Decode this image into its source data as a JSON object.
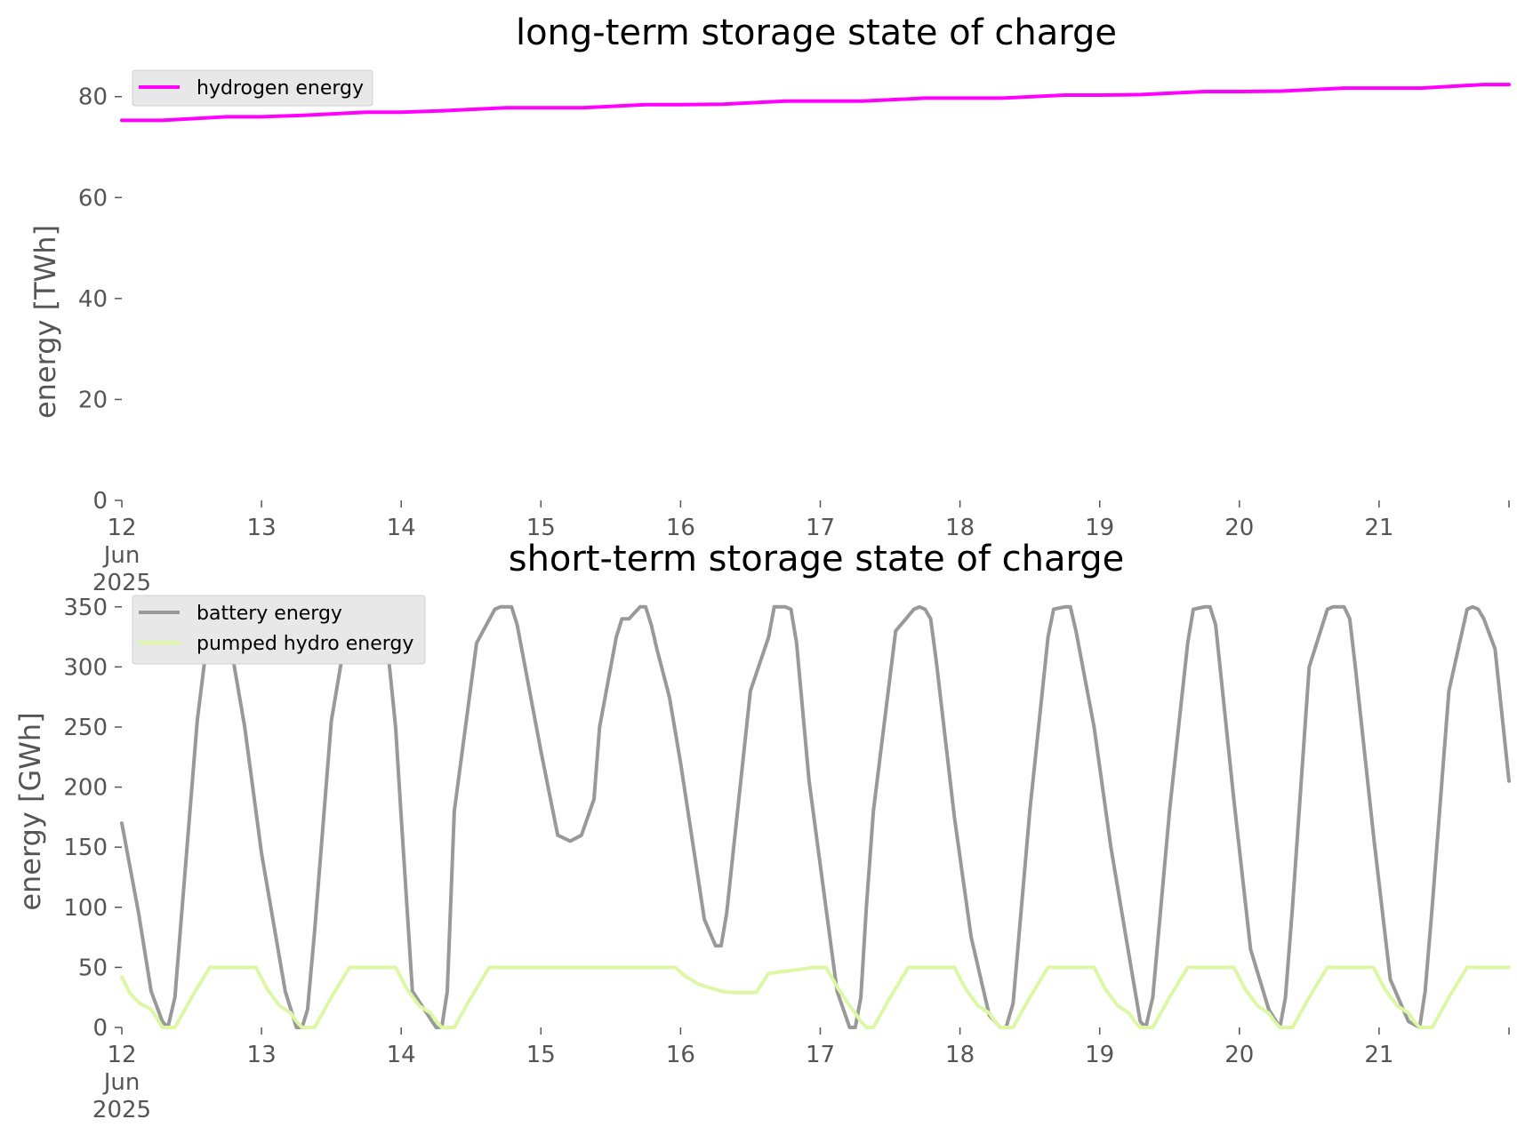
{
  "chart_data": [
    {
      "type": "line",
      "title": "long-term storage state of charge",
      "xlabel": "",
      "ylabel": "energy [TWh]",
      "ylim": [
        0,
        84
      ],
      "yticks": [
        0,
        20,
        40,
        60,
        80
      ],
      "xlim": [
        0,
        9.93
      ],
      "xtick_values": [
        0,
        1,
        2,
        3,
        4,
        5,
        6,
        7,
        8,
        9
      ],
      "xtick_labels": [
        "12\nJun\n2025",
        "13",
        "14",
        "15",
        "16",
        "17",
        "18",
        "19",
        "20",
        "21"
      ],
      "grid": false,
      "legend": "top-left",
      "series": [
        {
          "name": "hydrogen energy",
          "color": "#ff00ff",
          "x": [
            0,
            0.29,
            0.75,
            1.0,
            1.3,
            1.75,
            2.0,
            2.3,
            2.75,
            3.0,
            3.3,
            3.75,
            4.0,
            4.3,
            4.75,
            5.0,
            5.3,
            5.75,
            6.0,
            6.3,
            6.75,
            7.0,
            7.3,
            7.75,
            8.0,
            8.3,
            8.75,
            9.0,
            9.3,
            9.75,
            9.93
          ],
          "values": [
            75.3,
            75.3,
            76.0,
            76.0,
            76.3,
            76.9,
            76.9,
            77.2,
            77.8,
            77.8,
            77.8,
            78.4,
            78.4,
            78.5,
            79.1,
            79.1,
            79.1,
            79.7,
            79.7,
            79.7,
            80.3,
            80.3,
            80.4,
            81.0,
            81.0,
            81.1,
            81.7,
            81.7,
            81.7,
            82.4,
            82.4
          ]
        }
      ]
    },
    {
      "type": "line",
      "title": "short-term storage state of charge",
      "xlabel": "",
      "ylabel": "energy [GWh]",
      "ylim": [
        0,
        355
      ],
      "yticks": [
        0,
        50,
        100,
        150,
        200,
        250,
        300,
        350
      ],
      "xlim": [
        0,
        9.93
      ],
      "xtick_values": [
        0,
        1,
        2,
        3,
        4,
        5,
        6,
        7,
        8,
        9
      ],
      "xtick_labels": [
        "12\nJun\n2025",
        "13",
        "14",
        "15",
        "16",
        "17",
        "18",
        "19",
        "20",
        "21"
      ],
      "grid": false,
      "legend": "top-left",
      "series": [
        {
          "name": "battery energy",
          "color": "#999999",
          "x": [
            0,
            0.12,
            0.21,
            0.29,
            0.33,
            0.38,
            0.54,
            0.63,
            0.67,
            0.75,
            0.88,
            1.0,
            1.17,
            1.25,
            1.29,
            1.33,
            1.38,
            1.5,
            1.63,
            1.67,
            1.75,
            1.79,
            1.83,
            1.88,
            1.96,
            2.0,
            2.08,
            2.25,
            2.29,
            2.33,
            2.38,
            2.54,
            2.67,
            2.71,
            2.79,
            2.83,
            3.0,
            3.12,
            3.21,
            3.29,
            3.38,
            3.42,
            3.54,
            3.58,
            3.63,
            3.71,
            3.75,
            3.79,
            3.83,
            3.92,
            4.0,
            4.17,
            4.25,
            4.29,
            4.33,
            4.38,
            4.5,
            4.63,
            4.67,
            4.75,
            4.79,
            4.83,
            4.92,
            5.0,
            5.12,
            5.21,
            5.25,
            5.29,
            5.33,
            5.38,
            5.54,
            5.67,
            5.71,
            5.75,
            5.79,
            5.83,
            5.96,
            6.08,
            6.21,
            6.29,
            6.33,
            6.38,
            6.5,
            6.63,
            6.67,
            6.75,
            6.79,
            6.83,
            6.96,
            7.08,
            7.21,
            7.29,
            7.33,
            7.38,
            7.5,
            7.63,
            7.67,
            7.75,
            7.79,
            7.83,
            7.96,
            8.08,
            8.21,
            8.29,
            8.33,
            8.38,
            8.5,
            8.63,
            8.67,
            8.75,
            8.79,
            8.83,
            8.96,
            9.08,
            9.21,
            9.29,
            9.33,
            9.38,
            9.5,
            9.63,
            9.67,
            9.71,
            9.75,
            9.83,
            9.93
          ],
          "values": [
            170,
            95,
            30,
            5,
            0,
            25,
            255,
            340,
            350,
            338,
            250,
            145,
            30,
            0,
            0,
            15,
            80,
            255,
            345,
            350,
            348,
            342,
            340,
            342,
            250,
            175,
            30,
            0,
            0,
            30,
            180,
            320,
            348,
            350,
            350,
            335,
            230,
            160,
            155,
            160,
            190,
            250,
            325,
            340,
            340,
            350,
            350,
            335,
            315,
            275,
            220,
            90,
            68,
            68,
            95,
            150,
            280,
            325,
            350,
            350,
            348,
            320,
            205,
            135,
            30,
            0,
            0,
            25,
            100,
            180,
            330,
            348,
            350,
            348,
            340,
            305,
            175,
            75,
            10,
            0,
            0,
            20,
            180,
            325,
            348,
            350,
            350,
            330,
            250,
            150,
            60,
            5,
            0,
            25,
            180,
            320,
            348,
            350,
            350,
            335,
            190,
            65,
            15,
            0,
            25,
            100,
            300,
            348,
            350,
            350,
            340,
            300,
            160,
            40,
            5,
            0,
            30,
            100,
            280,
            348,
            350,
            348,
            340,
            315,
            205
          ]
        },
        {
          "name": "pumped hydro energy",
          "color": "#ddf7a4",
          "x": [
            0,
            0.06,
            0.13,
            0.21,
            0.25,
            0.29,
            0.33,
            0.38,
            0.5,
            0.63,
            0.96,
            1.04,
            1.13,
            1.21,
            1.25,
            1.29,
            1.33,
            1.38,
            1.5,
            1.63,
            1.96,
            2.04,
            2.13,
            2.21,
            2.25,
            2.29,
            2.33,
            2.38,
            2.5,
            2.63,
            3.0,
            3.5,
            3.96,
            4.04,
            4.13,
            4.21,
            4.3,
            4.38,
            4.46,
            4.54,
            4.63,
            4.96,
            5.04,
            5.13,
            5.21,
            5.25,
            5.29,
            5.33,
            5.38,
            5.5,
            5.63,
            5.96,
            6.04,
            6.13,
            6.21,
            6.25,
            6.29,
            6.33,
            6.38,
            6.5,
            6.63,
            6.96,
            7.04,
            7.13,
            7.21,
            7.25,
            7.29,
            7.33,
            7.38,
            7.5,
            7.63,
            7.96,
            8.04,
            8.13,
            8.21,
            8.25,
            8.29,
            8.33,
            8.38,
            8.5,
            8.63,
            8.96,
            9.04,
            9.13,
            9.21,
            9.25,
            9.29,
            9.33,
            9.38,
            9.5,
            9.63,
            9.93
          ],
          "values": [
            42,
            28,
            20,
            15,
            8,
            0,
            0,
            0,
            25,
            50,
            50,
            32,
            18,
            12,
            5,
            0,
            0,
            0,
            25,
            50,
            50,
            32,
            18,
            12,
            5,
            0,
            0,
            0,
            25,
            50,
            50,
            50,
            50,
            42,
            36,
            33,
            30,
            29,
            29,
            29,
            45,
            50,
            50,
            32,
            18,
            12,
            5,
            0,
            0,
            25,
            50,
            50,
            32,
            18,
            12,
            5,
            0,
            0,
            0,
            25,
            50,
            50,
            32,
            18,
            12,
            5,
            0,
            0,
            0,
            25,
            50,
            50,
            32,
            18,
            12,
            5,
            0,
            0,
            0,
            25,
            50,
            50,
            32,
            18,
            12,
            5,
            0,
            0,
            0,
            25,
            50,
            50
          ]
        }
      ]
    }
  ]
}
